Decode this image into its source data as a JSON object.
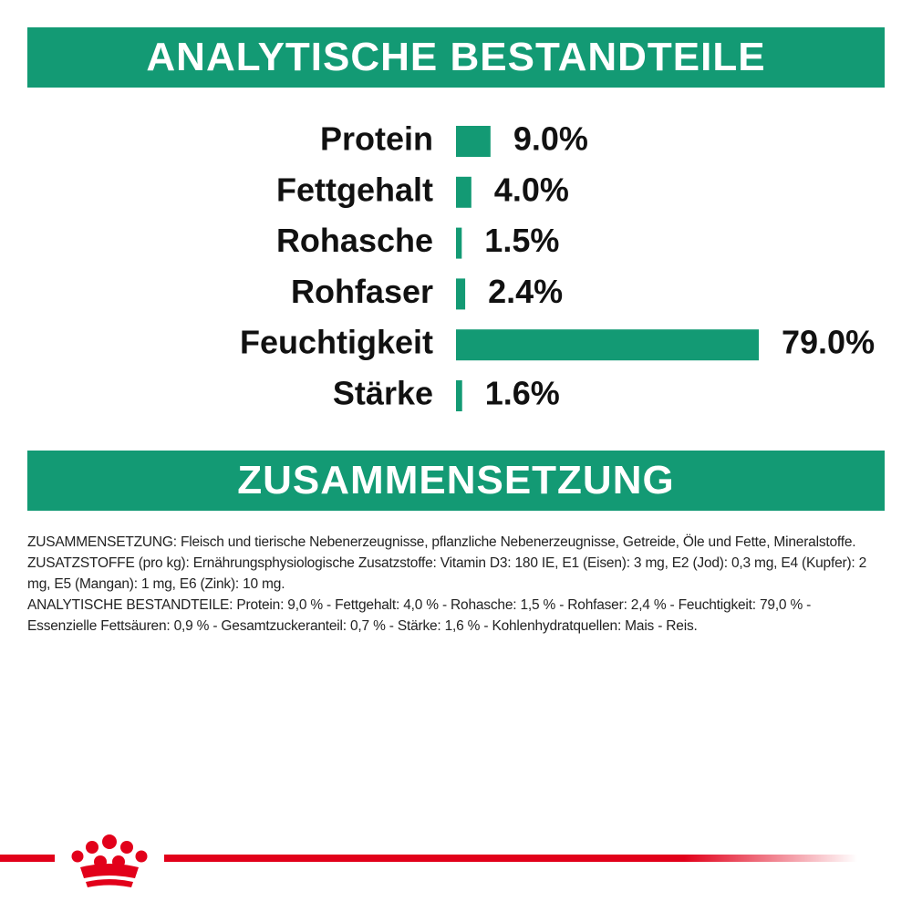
{
  "header": {
    "title": "ANALYTISCHE BESTANDTEILE"
  },
  "chart_data": {
    "type": "bar",
    "orientation": "horizontal",
    "color": "#139a74",
    "categories": [
      "Protein",
      "Fettgehalt",
      "Rohasche",
      "Rohfaser",
      "Feuchtigkeit",
      "Stärke"
    ],
    "values": [
      9.0,
      4.0,
      1.5,
      2.4,
      79.0,
      1.6
    ],
    "value_labels": [
      "9.0%",
      "4.0%",
      "1.5%",
      "2.4%",
      "79.0%",
      "1.6%"
    ]
  },
  "composition": {
    "title": "ZUSAMMENSETZUNG",
    "paragraphs": [
      "ZUSAMMENSETZUNG: Fleisch und tierische Nebenerzeugnisse, pflanzliche Nebenerzeugnisse, Getreide, Öle und Fette, Mineralstoffe.",
      "ZUSATZSTOFFE (pro kg): Ernährungsphysiologische Zusatzstoffe: Vitamin D3: 180 IE, E1 (Eisen): 3 mg, E2 (Jod): 0,3 mg, E4 (Kupfer): 2 mg, E5 (Mangan): 1 mg, E6 (Zink): 10 mg.",
      "ANALYTISCHE BESTANDTEILE: Protein: 9,0 % - Fettgehalt: 4,0 % - Rohasche: 1,5 % - Rohfaser: 2,4 % - Feuchtigkeit: 79,0 % - Essenzielle Fettsäuren: 0,9 % - Gesamtzuckeranteil: 0,7 % - Stärke: 1,6 % - Kohlenhydratquellen: Mais - Reis."
    ]
  }
}
